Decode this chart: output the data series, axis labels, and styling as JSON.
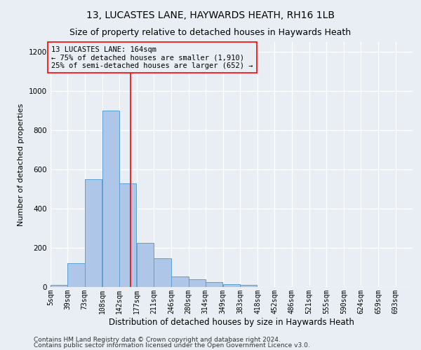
{
  "title": "13, LUCASTES LANE, HAYWARDS HEATH, RH16 1LB",
  "subtitle": "Size of property relative to detached houses in Haywards Heath",
  "xlabel": "Distribution of detached houses by size in Haywards Heath",
  "ylabel": "Number of detached properties",
  "footnote1": "Contains HM Land Registry data © Crown copyright and database right 2024.",
  "footnote2": "Contains public sector information licensed under the Open Government Licence v3.0.",
  "bin_labels": [
    "5sqm",
    "39sqm",
    "73sqm",
    "108sqm",
    "142sqm",
    "177sqm",
    "211sqm",
    "246sqm",
    "280sqm",
    "314sqm",
    "349sqm",
    "383sqm",
    "418sqm",
    "452sqm",
    "486sqm",
    "521sqm",
    "555sqm",
    "590sqm",
    "624sqm",
    "659sqm",
    "693sqm"
  ],
  "bin_edges": [
    5,
    39,
    73,
    108,
    142,
    177,
    211,
    246,
    280,
    314,
    349,
    383,
    418,
    452,
    486,
    521,
    555,
    590,
    624,
    659,
    693
  ],
  "bar_heights": [
    10,
    120,
    550,
    900,
    530,
    225,
    145,
    55,
    40,
    25,
    15,
    10,
    0,
    0,
    0,
    0,
    0,
    0,
    0,
    0
  ],
  "bar_color": "#aec6e8",
  "bar_edge_color": "#5a9fd4",
  "red_line_x": 164,
  "annotation_title": "13 LUCASTES LANE: 164sqm",
  "annotation_line1": "← 75% of detached houses are smaller (1,910)",
  "annotation_line2": "25% of semi-detached houses are larger (652) →",
  "ylim": [
    0,
    1250
  ],
  "yticks": [
    0,
    200,
    400,
    600,
    800,
    1000,
    1200
  ],
  "background_color": "#e8eef4",
  "grid_color": "#ffffff",
  "title_fontsize": 10,
  "subtitle_fontsize": 9,
  "footnote_fontsize": 6.5,
  "ylabel_fontsize": 8,
  "xlabel_fontsize": 8.5,
  "tick_fontsize": 7,
  "annot_fontsize": 7.5
}
